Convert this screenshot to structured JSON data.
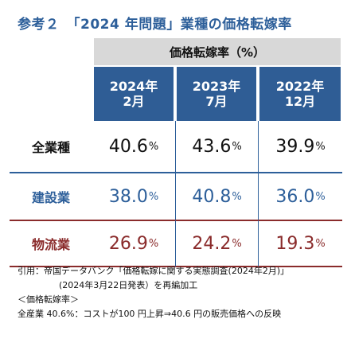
{
  "title": "参考２　「2024 年問題」業種の価格転嫁率",
  "table": {
    "unit_header": "価格転嫁率（%）",
    "columns": [
      {
        "line1": "2024年",
        "line2": "2月"
      },
      {
        "line1": "2023年",
        "line2": "7月"
      },
      {
        "line1": "2022年",
        "line2": "12月"
      }
    ],
    "rows": [
      {
        "label": "全業種",
        "values": [
          "40.6",
          "43.6",
          "39.9"
        ]
      },
      {
        "label": "建設業",
        "values": [
          "38.0",
          "40.8",
          "36.0"
        ]
      },
      {
        "label": "物流業",
        "values": [
          "26.9",
          "24.2",
          "19.3"
        ]
      }
    ],
    "value_unit": "%"
  },
  "notes": {
    "citation_line1": "引用：帝国データバンク「価格転嫁に関する実態調査(2024年2月)」",
    "citation_line2": "(2024年3月22日発表）を再編加工",
    "definition_heading": "＜価格転嫁率＞",
    "definition_text": "全産業 40.6%：コストが100 円上昇⇒40.6 円の販売価格への反映"
  },
  "colors": {
    "title_blue": "#2d5f9a",
    "header_blue": "#2f5d95",
    "construction_blue": "#2d5f9a",
    "logistics_red": "#8a2b2b",
    "unit_header_gray": "#d8d8d8"
  }
}
